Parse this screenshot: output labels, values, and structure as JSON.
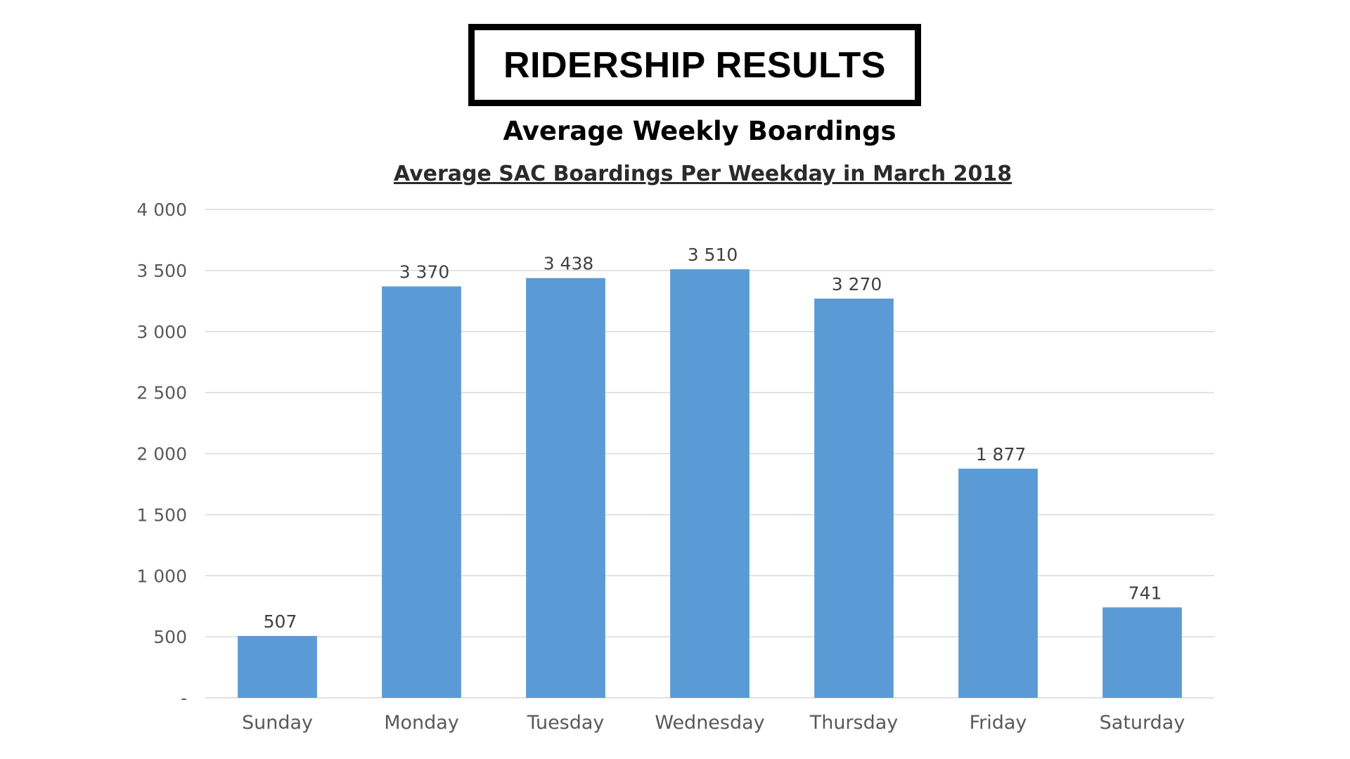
{
  "banner": {
    "text": "RIDERSHIP RESULTS"
  },
  "colors": {
    "bar": "#5b9bd5",
    "grid": "#d9d9d9",
    "axis_text": "#595959",
    "data_label": "#404040"
  },
  "chart_data": {
    "type": "bar",
    "title": "Average Weekly Boardings",
    "subtitle": "Average SAC Boardings Per Weekday in March 2018",
    "categories": [
      "Sunday",
      "Monday",
      "Tuesday",
      "Wednesday",
      "Thursday",
      "Friday",
      "Saturday"
    ],
    "values": [
      507,
      3370,
      3438,
      3510,
      3270,
      1877,
      741
    ],
    "data_labels": [
      "507",
      "3 370",
      "3 438",
      "3 510",
      "3 270",
      "1 877",
      "741"
    ],
    "ylim": [
      0,
      4000
    ],
    "yticks": [
      0,
      500,
      1000,
      1500,
      2000,
      2500,
      3000,
      3500,
      4000
    ],
    "ytick_labels": [
      "-",
      "500",
      "1 000",
      "1 500",
      "2 000",
      "2 500",
      "3 000",
      "3 500",
      "4 000"
    ],
    "xlabel": "",
    "ylabel": "",
    "grid": true,
    "legend": "none"
  }
}
